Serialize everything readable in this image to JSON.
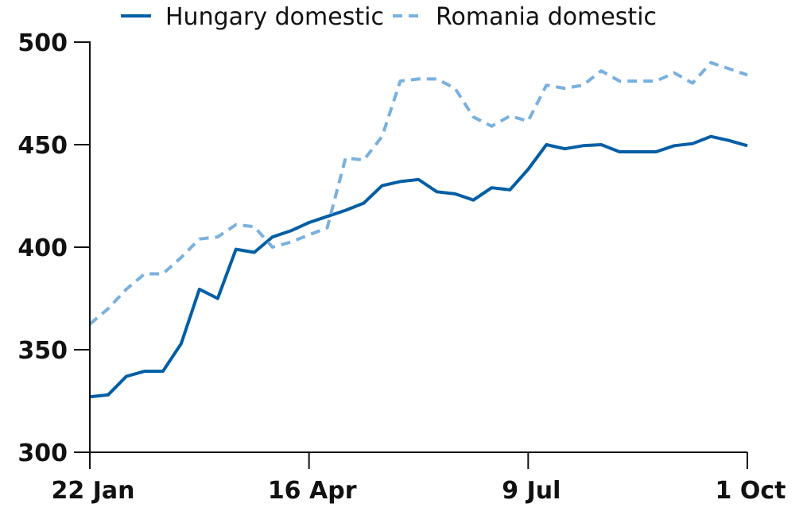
{
  "chart_data": {
    "type": "line",
    "title": "",
    "xlabel": "",
    "ylabel": "",
    "ylim": [
      300,
      500
    ],
    "yticks": [
      300,
      350,
      400,
      450,
      500
    ],
    "xticks": [
      {
        "label": "22 Jan",
        "index": 0
      },
      {
        "label": "16 Apr",
        "index": 12
      },
      {
        "label": "9 Jul",
        "index": 24
      },
      {
        "label": "1 Oct",
        "index": 36
      }
    ],
    "grid": false,
    "legend_position": "top",
    "series": [
      {
        "name": "Hungary domestic",
        "style": "solid",
        "color": "#005ea5",
        "values": [
          327,
          328,
          337,
          339.5,
          339.5,
          353,
          379.5,
          375,
          399,
          397.5,
          405,
          408,
          412,
          415,
          418,
          421.5,
          430,
          432,
          433,
          427,
          426,
          423,
          429,
          428,
          438,
          450,
          448,
          449.5,
          450,
          446.5,
          446.5,
          446.5,
          449.5,
          450.5,
          454,
          452,
          449.5
        ]
      },
      {
        "name": "Romania domestic",
        "style": "dashed",
        "color": "#7ab0de",
        "values": [
          362.5,
          370,
          379.5,
          387,
          387,
          395,
          404,
          405,
          411,
          410,
          400,
          402.5,
          406,
          409.5,
          443.5,
          442.5,
          454,
          481,
          482,
          482,
          477.5,
          463.5,
          459,
          464,
          461.5,
          479,
          477.5,
          479,
          486,
          481,
          481,
          481,
          485,
          480,
          490,
          487,
          484
        ]
      }
    ]
  }
}
